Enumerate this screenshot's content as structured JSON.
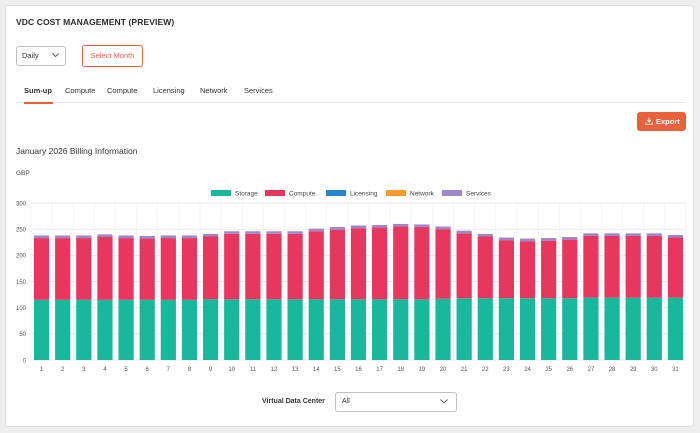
{
  "header": {
    "title": "VDC COST MANAGEMENT (PREVIEW)"
  },
  "controls": {
    "period_select": "Daily",
    "select_month_label": "Select Month"
  },
  "tabs": [
    {
      "label": "Sum-up",
      "active": true
    },
    {
      "label": "Compute",
      "active": false
    },
    {
      "label": "Compute",
      "active": false
    },
    {
      "label": "Licensing",
      "active": false
    },
    {
      "label": "Network",
      "active": false
    },
    {
      "label": "Services",
      "active": false
    }
  ],
  "export_label": "Export",
  "billing_title": "January 2026 Billing Information",
  "currency_label": "GBP",
  "vdc": {
    "label": "Virtual Data Center",
    "value": "All"
  },
  "colors": {
    "accent": "#e8613c"
  },
  "chart_data": {
    "type": "bar",
    "stacked": true,
    "ylim": [
      0,
      300
    ],
    "yticks": [
      0,
      50,
      100,
      150,
      200,
      250,
      300
    ],
    "categories": [
      "1",
      "2",
      "3",
      "4",
      "5",
      "6",
      "7",
      "8",
      "9",
      "10",
      "11",
      "12",
      "13",
      "14",
      "15",
      "16",
      "17",
      "18",
      "19",
      "20",
      "21",
      "22",
      "23",
      "24",
      "25",
      "26",
      "27",
      "28",
      "29",
      "30",
      "31"
    ],
    "legend_position": "top-center",
    "series": [
      {
        "name": "Storage",
        "color": "#17b89b",
        "values": [
          115,
          115,
          115,
          115,
          115,
          115,
          115,
          115,
          116,
          116,
          116,
          116,
          116,
          116,
          116,
          116,
          116,
          116,
          116,
          117,
          118,
          118,
          118,
          118,
          118,
          118,
          119,
          119,
          119,
          119,
          119
        ]
      },
      {
        "name": "Compute",
        "color": "#e8375f",
        "values": [
          118,
          118,
          118,
          120,
          118,
          117,
          118,
          118,
          120,
          125,
          125,
          125,
          125,
          130,
          133,
          136,
          137,
          139,
          138,
          133,
          124,
          118,
          111,
          109,
          110,
          112,
          118,
          118,
          118,
          118,
          115
        ]
      },
      {
        "name": "Licensing",
        "color": "#2585cf",
        "values": [
          0,
          0,
          0,
          0,
          0,
          0,
          0,
          0,
          0,
          0,
          0,
          0,
          0,
          0,
          0,
          0,
          0,
          0,
          0,
          0,
          0,
          0,
          0,
          0,
          0,
          0,
          0,
          0,
          0,
          0,
          0
        ]
      },
      {
        "name": "Network",
        "color": "#f39c2b",
        "values": [
          0,
          0,
          0,
          0,
          0,
          0,
          0,
          0,
          0,
          0,
          0,
          0,
          0,
          0,
          0,
          0,
          0,
          0,
          0,
          0,
          0,
          0,
          0,
          0,
          0,
          0,
          0,
          0,
          0,
          0,
          0
        ]
      },
      {
        "name": "Services",
        "color": "#9b87c9",
        "values": [
          5,
          5,
          5,
          5,
          5,
          5,
          5,
          5,
          5,
          5,
          5,
          5,
          5,
          5,
          5,
          5,
          5,
          5,
          5,
          5,
          5,
          5,
          5,
          5,
          5,
          5,
          5,
          5,
          5,
          5,
          5
        ]
      }
    ]
  }
}
